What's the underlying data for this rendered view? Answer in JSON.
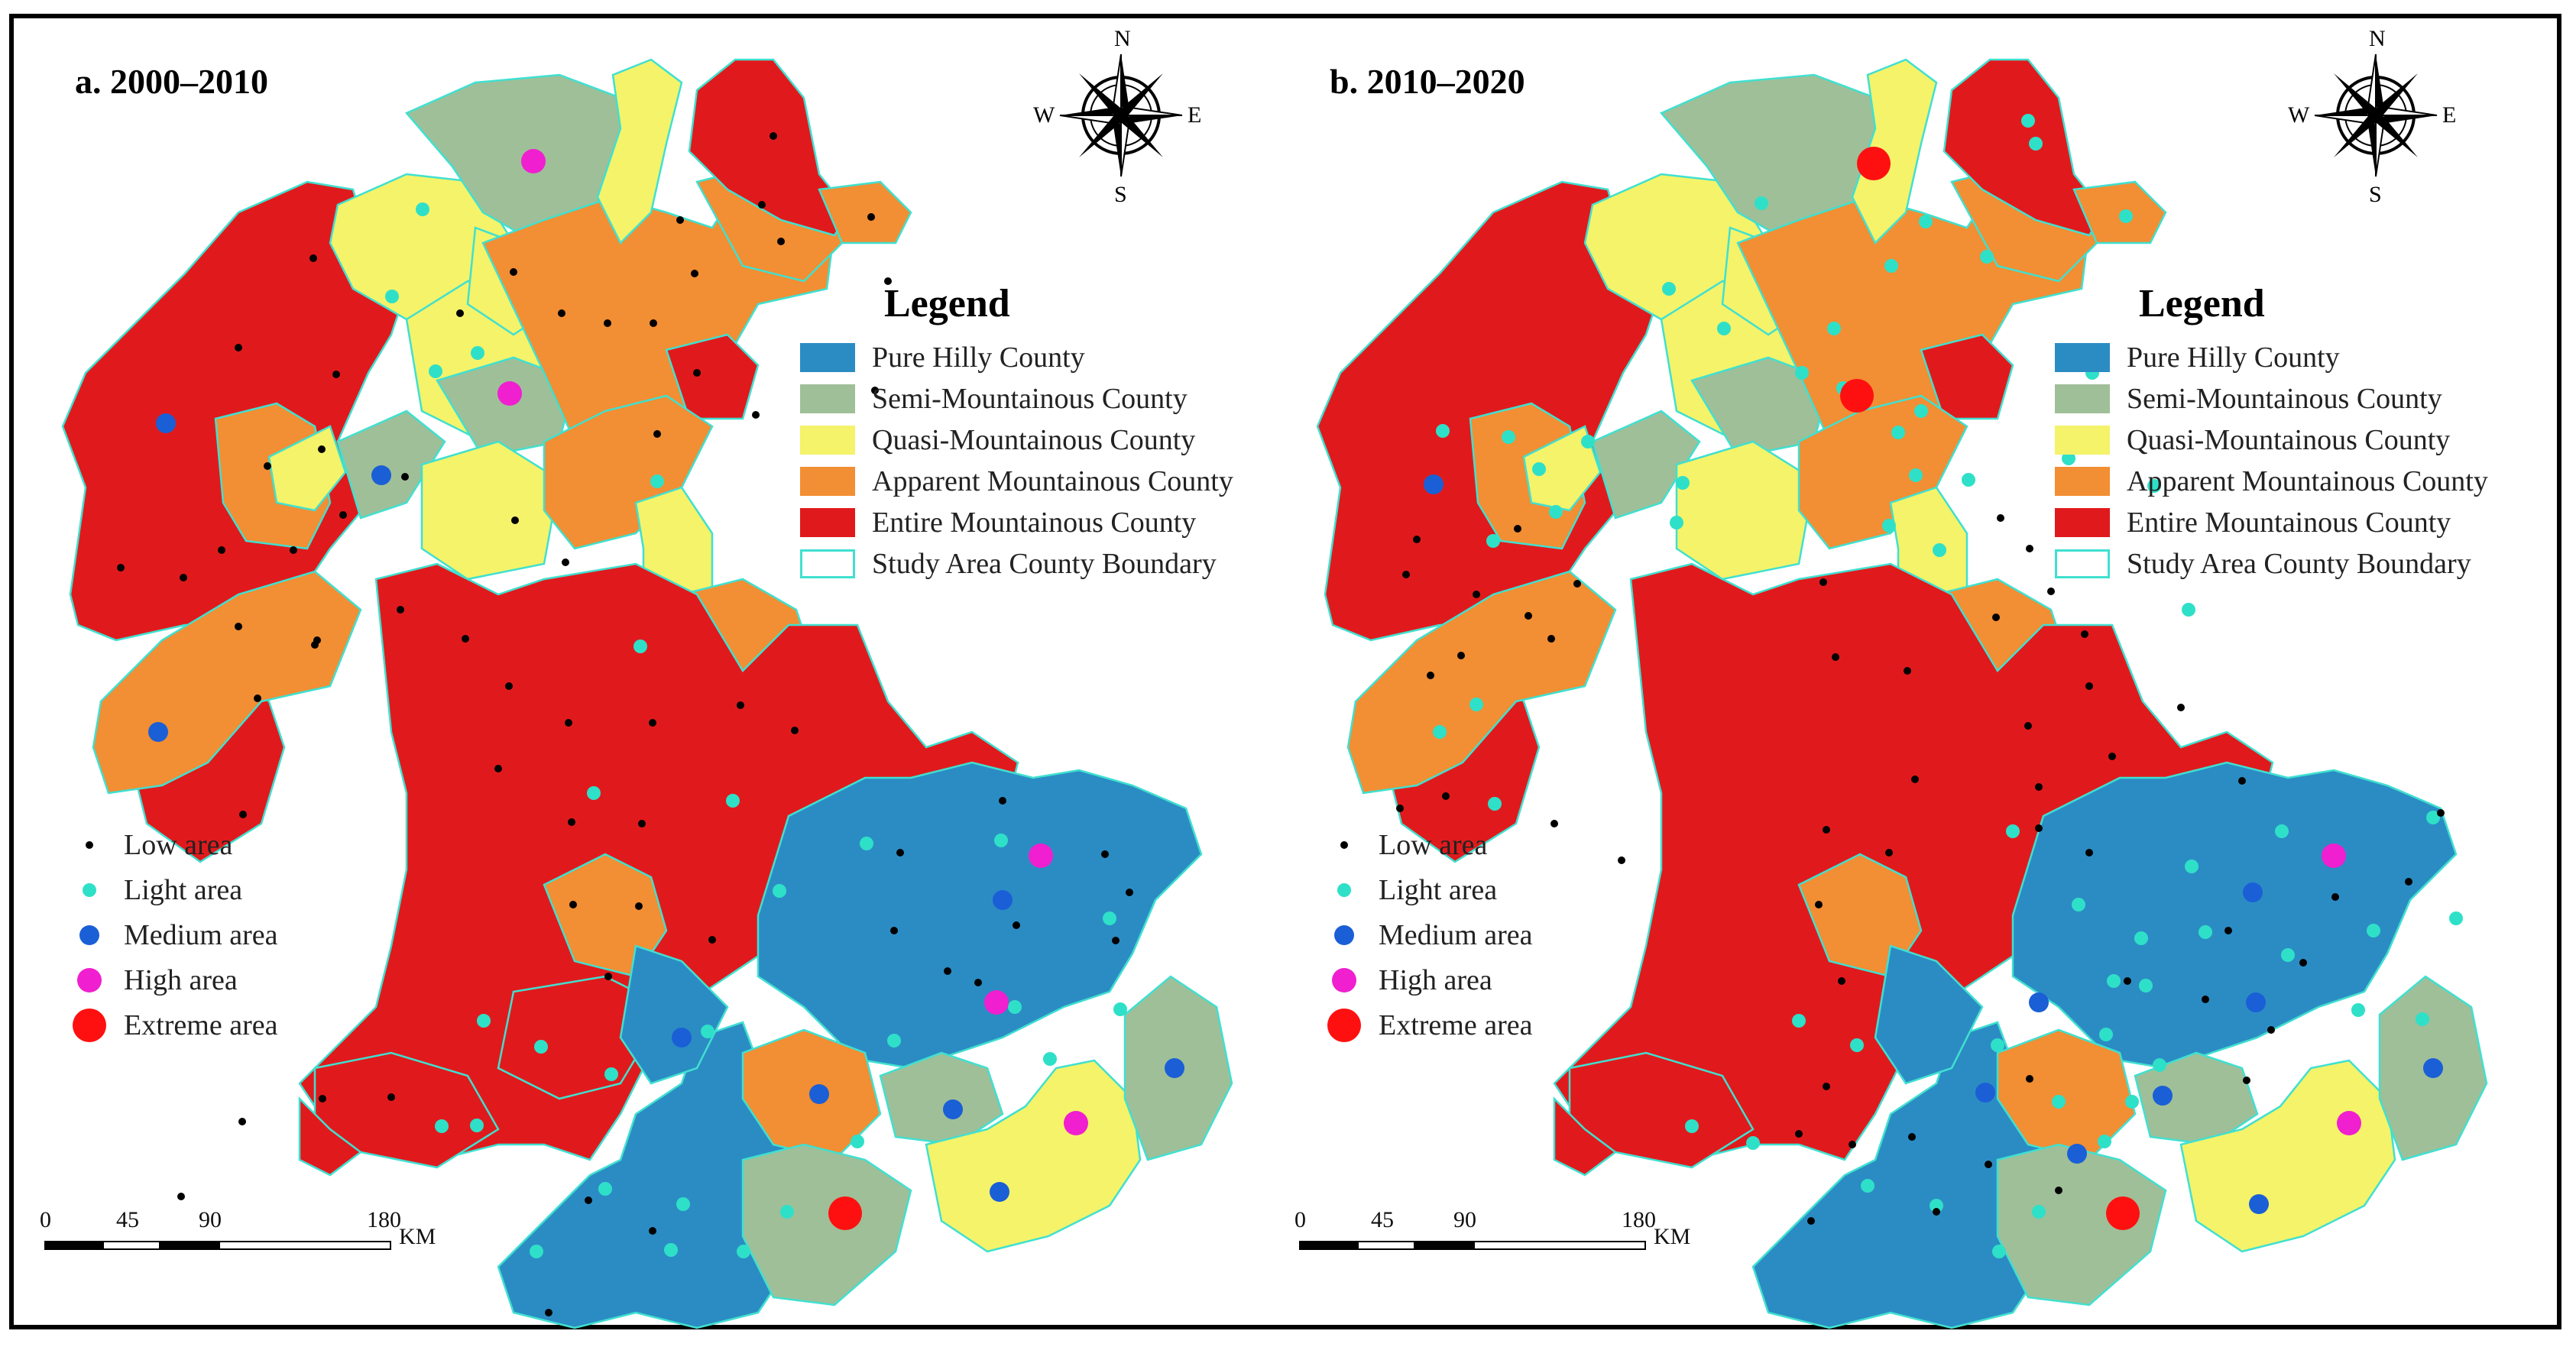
{
  "panels": [
    {
      "title": "a.  2000–2010",
      "points": [
        [
          "low",
          1000,
          160
        ],
        [
          "low",
          985,
          250
        ],
        [
          "low",
          878,
          270
        ],
        [
          "low",
          897,
          340
        ],
        [
          "low",
          1128,
          266
        ],
        [
          "low",
          1010,
          298
        ],
        [
          "low",
          660,
          338
        ],
        [
          "low",
          723,
          392
        ],
        [
          "low",
          590,
          392
        ],
        [
          "low",
          783,
          405
        ],
        [
          "low",
          843,
          405
        ],
        [
          "low",
          900,
          470
        ],
        [
          "low",
          848,
          550
        ],
        [
          "low",
          977,
          525
        ],
        [
          "low",
          1150,
          350
        ],
        [
          "low",
          1133,
          493
        ],
        [
          "low",
          1070,
          460
        ],
        [
          "light",
          541,
          256
        ],
        [
          "light",
          501,
          370
        ],
        [
          "light",
          558,
          468
        ],
        [
          "light",
          613,
          444
        ],
        [
          "light",
          848,
          612
        ],
        [
          "light",
          826,
          828
        ],
        [
          "light",
          765,
          1020
        ],
        [
          "light",
          947,
          1030
        ],
        [
          "medium",
          205,
          536
        ],
        [
          "medium",
          487,
          604
        ],
        [
          "medium",
          195,
          940
        ],
        [
          "magenta",
          686,
          193
        ],
        [
          "magenta",
          655,
          497
        ],
        [
          "low",
          398,
          320
        ],
        [
          "low",
          300,
          437
        ],
        [
          "low",
          428,
          472
        ],
        [
          "low",
          409,
          570
        ],
        [
          "low",
          338,
          592
        ],
        [
          "low",
          437,
          656
        ],
        [
          "low",
          518,
          606
        ],
        [
          "low",
          512,
          780
        ],
        [
          "low",
          146,
          725
        ],
        [
          "low",
          228,
          738
        ],
        [
          "low",
          278,
          702
        ],
        [
          "low",
          372,
          702
        ],
        [
          "low",
          403,
          820
        ],
        [
          "low",
          300,
          802
        ],
        [
          "low",
          325,
          896
        ],
        [
          "low",
          400,
          826
        ],
        [
          "low",
          597,
          818
        ],
        [
          "low",
          728,
          718
        ],
        [
          "low",
          662,
          663
        ],
        [
          "low",
          654,
          880
        ],
        [
          "low",
          640,
          988
        ],
        [
          "low",
          732,
          928
        ],
        [
          "low",
          842,
          928
        ],
        [
          "low",
          957,
          905
        ],
        [
          "low",
          1028,
          938
        ],
        [
          "low",
          736,
          1058
        ],
        [
          "low",
          828,
          1060
        ],
        [
          "low",
          738,
          1166
        ],
        [
          "low",
          824,
          1168
        ],
        [
          "low",
          784,
          1260
        ],
        [
          "low",
          920,
          1212
        ],
        [
          "low",
          1166,
          1098
        ],
        [
          "low",
          1158,
          1200
        ],
        [
          "low",
          1228,
          1253
        ],
        [
          "low",
          1318,
          1193
        ],
        [
          "low",
          1448,
          1213
        ],
        [
          "low",
          1466,
          1150
        ],
        [
          "low",
          1434,
          1100
        ],
        [
          "low",
          1300,
          1030
        ],
        [
          "low",
          306,
          1048
        ],
        [
          "low",
          500,
          1418
        ],
        [
          "low",
          410,
          1420
        ],
        [
          "low",
          305,
          1450
        ],
        [
          "low",
          225,
          1548
        ],
        [
          "low",
          758,
          1553
        ],
        [
          "low",
          842,
          1593
        ],
        [
          "light",
          1008,
          1148
        ],
        [
          "light",
          1122,
          1086
        ],
        [
          "light",
          1298,
          1082
        ],
        [
          "light",
          1440,
          1184
        ],
        [
          "light",
          1454,
          1303
        ],
        [
          "light",
          1362,
          1368
        ],
        [
          "light",
          1316,
          1300
        ],
        [
          "light",
          1158,
          1344
        ],
        [
          "light",
          914,
          1332
        ],
        [
          "light",
          788,
          1388
        ],
        [
          "light",
          621,
          1318
        ],
        [
          "light",
          696,
          1352
        ],
        [
          "light",
          612,
          1455
        ],
        [
          "light",
          566,
          1456
        ],
        [
          "light",
          780,
          1538
        ],
        [
          "light",
          882,
          1558
        ],
        [
          "light",
          961,
          1620
        ],
        [
          "light",
          1110,
          1476
        ],
        [
          "light",
          1018,
          1568
        ],
        [
          "light",
          690,
          1620
        ],
        [
          "light",
          866,
          1618
        ],
        [
          "medium",
          1300,
          1160
        ],
        [
          "medium",
          880,
          1340
        ],
        [
          "medium",
          1060,
          1414
        ],
        [
          "medium",
          1235,
          1434
        ],
        [
          "medium",
          1525,
          1380
        ],
        [
          "medium",
          1296,
          1542
        ],
        [
          "magenta",
          1350,
          1102
        ],
        [
          "magenta",
          1292,
          1294
        ],
        [
          "magenta",
          1396,
          1452
        ],
        [
          "extreme",
          1094,
          1570
        ],
        [
          "low",
          1268,
          1268
        ],
        [
          "low",
          706,
          1700
        ]
      ]
    },
    {
      "title": "b.  2010–2020",
      "points": [
        [
          "light",
          1000,
          140
        ],
        [
          "light",
          1010,
          170
        ],
        [
          "light",
          866,
          272
        ],
        [
          "light",
          821,
          330
        ],
        [
          "light",
          1128,
          265
        ],
        [
          "light",
          946,
          318
        ],
        [
          "light",
          651,
          248
        ],
        [
          "light",
          530,
          360
        ],
        [
          "light",
          602,
          412
        ],
        [
          "light",
          746,
          412
        ],
        [
          "light",
          704,
          470
        ],
        [
          "light",
          758,
          490
        ],
        [
          "light",
          830,
          548
        ],
        [
          "light",
          860,
          520
        ],
        [
          "light",
          853,
          604
        ],
        [
          "light",
          922,
          610
        ],
        [
          "light",
          1053,
          582
        ],
        [
          "light",
          1084,
          470
        ],
        [
          "light",
          818,
          670
        ],
        [
          "light",
          884,
          702
        ],
        [
          "light",
          1165,
          618
        ],
        [
          "light",
          1090,
          608
        ],
        [
          "light",
          540,
          666
        ],
        [
          "light",
          548,
          614
        ],
        [
          "light",
          1210,
          780
        ],
        [
          "light",
          980,
          1070
        ],
        [
          "light",
          1066,
          1166
        ],
        [
          "light",
          1112,
          1266
        ],
        [
          "light",
          1136,
          1424
        ],
        [
          "light",
          1040,
          1424
        ],
        [
          "light",
          960,
          1350
        ],
        [
          "light",
          776,
          1350
        ],
        [
          "light",
          700,
          1318
        ],
        [
          "light",
          560,
          1456
        ],
        [
          "light",
          640,
          1478
        ],
        [
          "light",
          790,
          1534
        ],
        [
          "light",
          880,
          1560
        ],
        [
          "light",
          962,
          1620
        ],
        [
          "light",
          1014,
          1568
        ],
        [
          "light",
          1100,
          1476
        ],
        [
          "light",
          1340,
          1232
        ],
        [
          "light",
          1432,
          1304
        ],
        [
          "light",
          1452,
          1200
        ],
        [
          "light",
          1332,
          1070
        ],
        [
          "light",
          1214,
          1116
        ],
        [
          "light",
          1232,
          1202
        ],
        [
          "light",
          1148,
          1210
        ],
        [
          "light",
          1154,
          1272
        ],
        [
          "light",
          1102,
          1336
        ],
        [
          "light",
          1172,
          1376
        ],
        [
          "light",
          234,
          546
        ],
        [
          "light",
          320,
          554
        ],
        [
          "light",
          360,
          596
        ],
        [
          "light",
          424,
          560
        ],
        [
          "light",
          382,
          652
        ],
        [
          "light",
          300,
          690
        ],
        [
          "light",
          278,
          904
        ],
        [
          "light",
          230,
          940
        ],
        [
          "light",
          302,
          1034
        ],
        [
          "light",
          1530,
          1052
        ],
        [
          "light",
          1560,
          1184
        ],
        [
          "light",
          1516,
          1316
        ],
        [
          "low",
          1130,
          1266
        ],
        [
          "low",
          1232,
          1290
        ],
        [
          "low",
          1318,
          1330
        ],
        [
          "low",
          1360,
          1242
        ],
        [
          "low",
          1402,
          1156
        ],
        [
          "low",
          1498,
          1136
        ],
        [
          "low",
          1540,
          1046
        ],
        [
          "low",
          1280,
          1004
        ],
        [
          "low",
          1200,
          908
        ],
        [
          "low",
          1110,
          972
        ],
        [
          "low",
          1014,
          1012
        ],
        [
          "low",
          1000,
          932
        ],
        [
          "low",
          1080,
          880
        ],
        [
          "low",
          1074,
          812
        ],
        [
          "low",
          958,
          790
        ],
        [
          "low",
          1030,
          756
        ],
        [
          "low",
          1002,
          700
        ],
        [
          "low",
          964,
          660
        ],
        [
          "low",
          1080,
          1098
        ],
        [
          "low",
          1286,
          1396
        ],
        [
          "low",
          1040,
          1540
        ],
        [
          "low",
          948,
          1506
        ],
        [
          "low",
          848,
          1470
        ],
        [
          "low",
          770,
          1480
        ],
        [
          "low",
          736,
          1404
        ],
        [
          "low",
          700,
          1466
        ],
        [
          "low",
          756,
          1266
        ],
        [
          "low",
          726,
          1166
        ],
        [
          "low",
          818,
          1098
        ],
        [
          "low",
          852,
          1002
        ],
        [
          "low",
          736,
          1068
        ],
        [
          "low",
          842,
          860
        ],
        [
          "low",
          748,
          842
        ],
        [
          "low",
          732,
          744
        ],
        [
          "low",
          1014,
          1066
        ],
        [
          "low",
          1262,
          1200
        ],
        [
          "low",
          200,
          688
        ],
        [
          "low",
          186,
          734
        ],
        [
          "low",
          218,
          866
        ],
        [
          "low",
          258,
          840
        ],
        [
          "low",
          278,
          760
        ],
        [
          "low",
          332,
          674
        ],
        [
          "low",
          346,
          788
        ],
        [
          "low",
          376,
          818
        ],
        [
          "low",
          410,
          746
        ],
        [
          "low",
          238,
          1024
        ],
        [
          "low",
          178,
          1040
        ],
        [
          "low",
          380,
          1060
        ],
        [
          "low",
          468,
          1108
        ],
        [
          "low",
          1002,
          1394
        ],
        [
          "low",
          880,
          1568
        ],
        [
          "low",
          716,
          1580
        ],
        [
          "medium",
          222,
          616
        ],
        [
          "medium",
          1294,
          1150
        ],
        [
          "medium",
          944,
          1412
        ],
        [
          "medium",
          1064,
          1492
        ],
        [
          "medium",
          1176,
          1416
        ],
        [
          "medium",
          1302,
          1558
        ],
        [
          "medium",
          1530,
          1380
        ],
        [
          "medium",
          1014,
          1294
        ],
        [
          "medium",
          1298,
          1294
        ],
        [
          "magenta",
          1400,
          1102
        ],
        [
          "magenta",
          1420,
          1452
        ],
        [
          "extreme",
          798,
          196
        ],
        [
          "extreme",
          776,
          500
        ],
        [
          "extreme",
          1124,
          1570
        ]
      ]
    }
  ],
  "legend": {
    "title": "Legend",
    "items": [
      {
        "label": "Pure Hilly County",
        "color": "#2b8cc4"
      },
      {
        "label": "Semi-Mountainous County",
        "color": "#9fbf98"
      },
      {
        "label": "Quasi-Mountainous County",
        "color": "#f4f36a"
      },
      {
        "label": "Apparent Mountainous County",
        "color": "#f28e33"
      },
      {
        "label": "Entire Mountainous County",
        "color": "#e01a1c"
      },
      {
        "label": "Study Area County Boundary",
        "color": "#ffffff",
        "border": "#40e0d0"
      }
    ]
  },
  "point_legend": [
    {
      "label": "Low area",
      "color": "#000000",
      "kind": "low"
    },
    {
      "label": "Light area",
      "color": "#2fe0c8",
      "kind": "light"
    },
    {
      "label": "Medium area",
      "color": "#1a5fd6",
      "kind": "medium"
    },
    {
      "label": "High area",
      "color": "#f01fcf",
      "kind": "magenta"
    },
    {
      "label": "Extreme area",
      "color": "#ff1010",
      "kind": "extreme"
    }
  ],
  "scale": {
    "ticks": [
      "0",
      "45",
      "90",
      "180"
    ],
    "unit": "KM"
  },
  "compass": {
    "n": "N",
    "s": "S",
    "e": "E",
    "w": "W"
  }
}
